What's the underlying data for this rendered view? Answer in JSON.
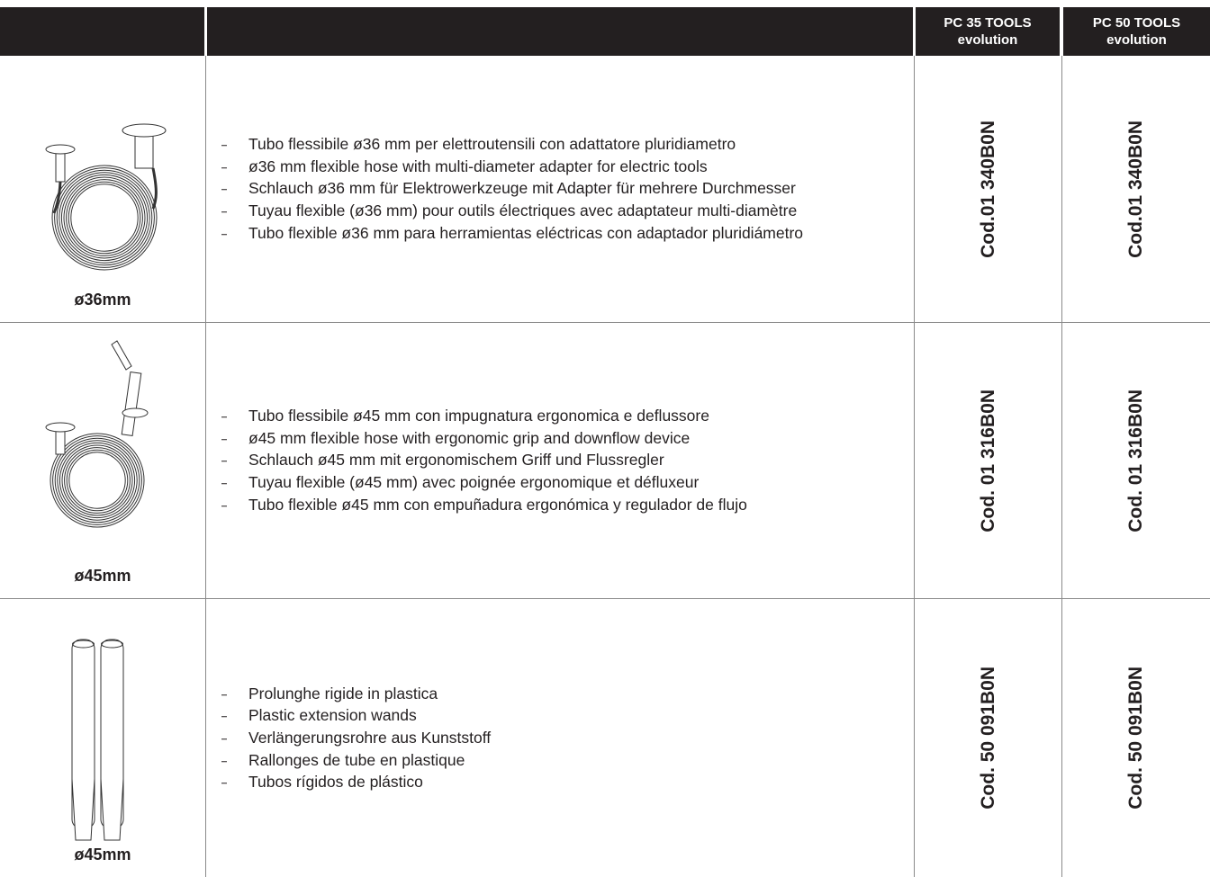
{
  "table": {
    "header": [
      {
        "line1": "PC 35 TOOLS",
        "line2": "evolution"
      },
      {
        "line1": "PC 50 TOOLS",
        "line2": "evolution"
      }
    ],
    "rows": [
      {
        "label": "ø36mm",
        "items": [
          "Tubo flessibile ø36 mm per elettroutensili con adattatore pluridiametro",
          "ø36 mm flexible hose with multi-diameter adapter for electric tools",
          "Schlauch ø36 mm für Elektrowerkzeuge mit Adapter für mehrere Durchmesser",
          "Tuyau flexible (ø36 mm) pour outils électriques avec adaptateur multi-diamètre",
          "Tubo flexible ø36 mm para herramientas eléctricas con adaptador pluridiámetro"
        ],
        "codes": [
          "Cod.01 340B0N",
          "Cod.01 340B0N"
        ]
      },
      {
        "label": "ø45mm",
        "items": [
          "Tubo flessibile ø45 mm con impugnatura ergonomica e deflussore",
          "ø45 mm flexible hose with ergonomic grip and downflow device",
          "Schlauch ø45 mm mit ergonomischem Griff und Flussregler",
          "Tuyau flexible (ø45 mm) avec poignée ergonomique et défluxeur",
          "Tubo flexible ø45 mm con empuñadura ergonómica y regulador de flujo"
        ],
        "codes": [
          "Cod. 01 316B0N",
          "Cod. 01 316B0N"
        ]
      },
      {
        "label": "ø45mm",
        "items": [
          "Prolunghe rigide in plastica",
          "Plastic extension wands",
          "Verlängerungsrohre aus Kunststoff",
          "Rallonges de tube en plastique",
          "Tubos rígidos de plástico"
        ],
        "codes": [
          "Cod. 50 091B0N",
          "Cod. 50 091B0N"
        ]
      }
    ]
  }
}
